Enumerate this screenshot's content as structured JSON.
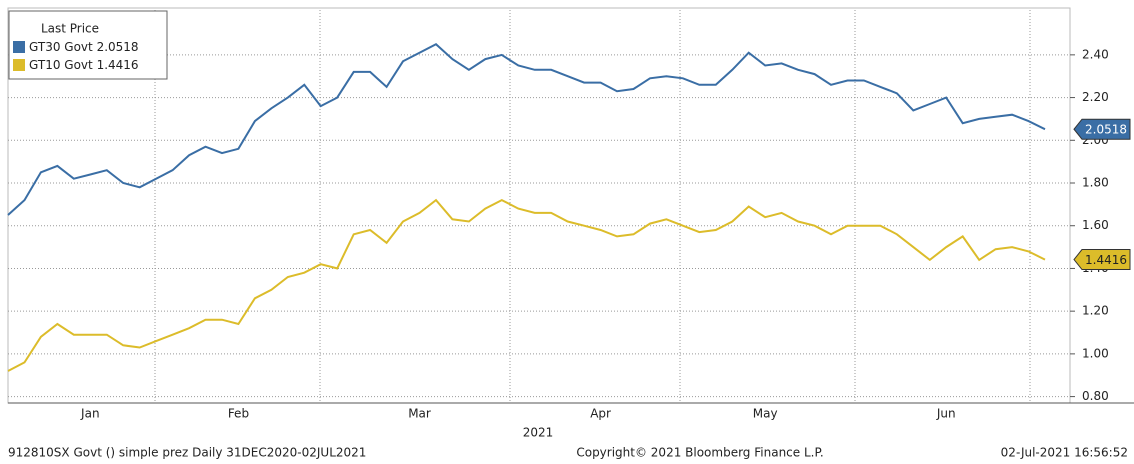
{
  "chart_data": {
    "type": "line",
    "legend_title": "Last Price",
    "xlabel": "2021",
    "footnotes": [
      "912810SX Govt () simple prez  Daily 31DEC2020-02JUL2021",
      "Copyright© 2021 Bloomberg Finance L.P.",
      "02-Jul-2021 16:56:52"
    ],
    "categories": [
      null,
      null,
      null,
      null,
      null,
      "Jan",
      null,
      null,
      null,
      null,
      null,
      null,
      null,
      null,
      "Feb",
      null,
      null,
      null,
      null,
      null,
      null,
      null,
      null,
      null,
      null,
      "Mar",
      null,
      null,
      null,
      null,
      null,
      null,
      null,
      null,
      null,
      null,
      "Apr",
      null,
      null,
      null,
      null,
      null,
      null,
      null,
      null,
      null,
      "May",
      null,
      null,
      null,
      null,
      null,
      null,
      null,
      null,
      null,
      null,
      "Jun",
      null,
      null,
      null,
      null,
      null,
      null
    ],
    "series": [
      {
        "name": "GT30 Govt",
        "color": "#3a6ea5",
        "values": [
          1.65,
          1.72,
          1.85,
          1.88,
          1.82,
          1.84,
          1.86,
          1.8,
          1.78,
          1.82,
          1.86,
          1.93,
          1.97,
          1.94,
          1.96,
          2.09,
          2.15,
          2.2,
          2.26,
          2.16,
          2.2,
          2.32,
          2.32,
          2.25,
          2.37,
          2.41,
          2.45,
          2.38,
          2.33,
          2.38,
          2.4,
          2.35,
          2.33,
          2.33,
          2.3,
          2.27,
          2.27,
          2.23,
          2.24,
          2.29,
          2.3,
          2.29,
          2.26,
          2.26,
          2.33,
          2.41,
          2.35,
          2.36,
          2.33,
          2.31,
          2.26,
          2.28,
          2.28,
          2.25,
          2.22,
          2.14,
          2.17,
          2.2,
          2.08,
          2.1,
          2.11,
          2.12,
          2.09,
          2.0518
        ]
      },
      {
        "name": "GT10 Govt",
        "color": "#dcbc2a",
        "values": [
          0.92,
          0.96,
          1.08,
          1.14,
          1.09,
          1.09,
          1.09,
          1.04,
          1.03,
          1.06,
          1.09,
          1.12,
          1.16,
          1.16,
          1.14,
          1.26,
          1.3,
          1.36,
          1.38,
          1.42,
          1.4,
          1.56,
          1.58,
          1.52,
          1.62,
          1.66,
          1.72,
          1.63,
          1.62,
          1.68,
          1.72,
          1.68,
          1.66,
          1.66,
          1.62,
          1.6,
          1.58,
          1.55,
          1.56,
          1.61,
          1.63,
          1.6,
          1.57,
          1.58,
          1.62,
          1.69,
          1.64,
          1.66,
          1.62,
          1.6,
          1.56,
          1.6,
          1.6,
          1.6,
          1.56,
          1.5,
          1.44,
          1.5,
          1.55,
          1.44,
          1.49,
          1.5,
          1.48,
          1.4416
        ]
      }
    ],
    "ylim": [
      0.77,
      2.61
    ],
    "yticks": [
      {
        "value": 0.8,
        "label": "0.80"
      },
      {
        "value": 1.0,
        "label": "1.00"
      },
      {
        "value": 1.2,
        "label": "1.20"
      },
      {
        "value": 1.4,
        "label": "1.40"
      },
      {
        "value": 1.6,
        "label": "1.60"
      },
      {
        "value": 1.8,
        "label": "1.80"
      },
      {
        "value": 2.0,
        "label": "2.00"
      },
      {
        "value": 2.2,
        "label": "2.20"
      },
      {
        "value": 2.4,
        "label": "2.40"
      }
    ],
    "grid": true
  }
}
